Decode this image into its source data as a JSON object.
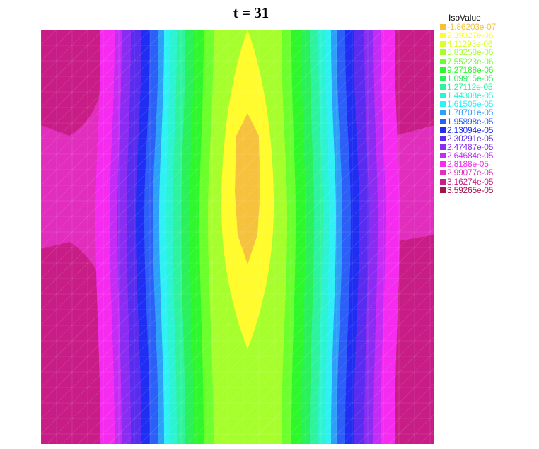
{
  "chart_data": {
    "type": "heatmap",
    "title": "t = 31",
    "legend": {
      "title": "IsoValue",
      "placement": "top-right",
      "entries": [
        {
          "label": "-1.86203e-07",
          "color": "#f6c23e"
        },
        {
          "label": "2.39327e-06",
          "color": "#fffb2c"
        },
        {
          "label": "4.11293e-06",
          "color": "#d9ff2c"
        },
        {
          "label": "5.83258e-06",
          "color": "#a6ff2c"
        },
        {
          "label": "7.55223e-06",
          "color": "#6bff2c"
        },
        {
          "label": "9.27188e-06",
          "color": "#2ef82c"
        },
        {
          "label": "1.09915e-05",
          "color": "#2af05a"
        },
        {
          "label": "1.27112e-05",
          "color": "#2ef39e"
        },
        {
          "label": "1.44308e-05",
          "color": "#2cf3d2"
        },
        {
          "label": "1.61505e-05",
          "color": "#2ff0f5"
        },
        {
          "label": "1.78701e-05",
          "color": "#2c9ff8"
        },
        {
          "label": "1.95898e-05",
          "color": "#2c5ef8"
        },
        {
          "label": "2.13094e-05",
          "color": "#1f2ef2"
        },
        {
          "label": "2.30291e-05",
          "color": "#5a2cf0"
        },
        {
          "label": "2.47487e-05",
          "color": "#8a2cf2"
        },
        {
          "label": "2.64684e-05",
          "color": "#c42cf5"
        },
        {
          "label": "2.8188e-05",
          "color": "#f52cf0"
        },
        {
          "label": "2.99077e-05",
          "color": "#e12ebd"
        },
        {
          "label": "3.16274e-05",
          "color": "#c81c86"
        },
        {
          "label": "3.59265e-05",
          "color": "#a5124e"
        }
      ]
    },
    "grid": true
  }
}
